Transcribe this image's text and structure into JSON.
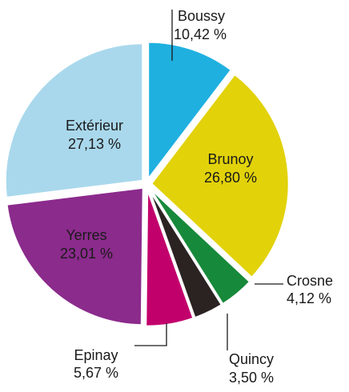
{
  "chart_data": {
    "type": "pie",
    "categories": [
      "Boussy",
      "Brunoy",
      "Crosne",
      "Quincy",
      "Epinay",
      "Yerres",
      "Extérieur"
    ],
    "values": [
      10.42,
      26.8,
      4.12,
      3.5,
      5.67,
      23.01,
      27.13
    ],
    "value_labels": [
      "10,42 %",
      "26,80 %",
      "4,12 %",
      "3,50 %",
      "5,67 %",
      "23,01 %",
      "27,13 %"
    ],
    "colors": [
      "#1fb0e0",
      "#e2d20a",
      "#17893a",
      "#2b2222",
      "#c2006c",
      "#8b2b8c",
      "#a9d8ec"
    ]
  }
}
